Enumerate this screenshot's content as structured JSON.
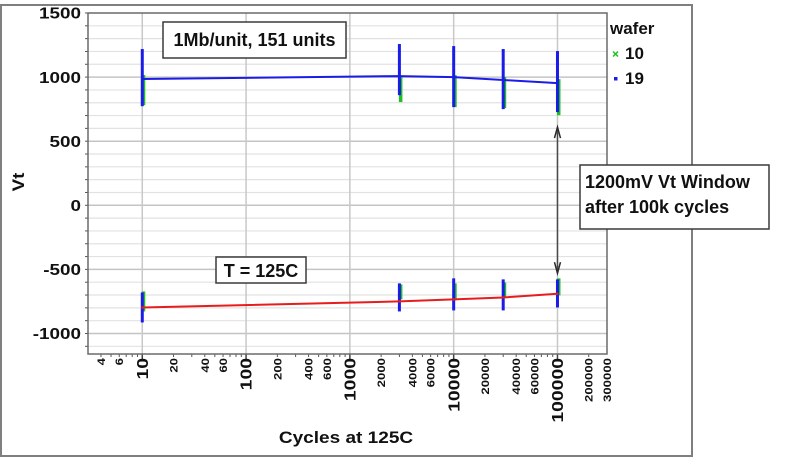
{
  "chart_data": {
    "type": "line",
    "title": "",
    "xlabel": "Cycles at 125C",
    "ylabel": "Vt",
    "xscale": "log",
    "xlim": [
      3,
      300000
    ],
    "ylim": [
      -1160,
      1500
    ],
    "grid": true,
    "y_grid_step": 100,
    "y_ticks": [
      -1000,
      -500,
      0,
      500,
      1000,
      1500
    ],
    "y_tick_labels": [
      "-1000",
      "-500",
      "0",
      "500",
      "1000",
      "1500"
    ],
    "x_major_ticks": [
      10,
      100,
      1000,
      10000,
      100000
    ],
    "x_major_tick_labels": [
      "10",
      "100",
      "1000",
      "10000",
      "100000"
    ],
    "x_minor_label_ticks": [
      4,
      6,
      20,
      40,
      60,
      200,
      400,
      600,
      2000,
      4000,
      6000,
      20000,
      40000,
      60000,
      200000,
      300000
    ],
    "x_minor_tick_labels": [
      "4",
      "6",
      "20",
      "40",
      "60",
      "200",
      "400",
      "600",
      "2000",
      "4000",
      "6000",
      "20000",
      "40000",
      "60000",
      "200000",
      "300000"
    ],
    "x": [
      10,
      3000,
      10000,
      30000,
      100000
    ],
    "mean_lines": {
      "upper": {
        "color": "#1c1ce8",
        "values": [
          985,
          1008,
          1000,
          977,
          953
        ]
      },
      "lower": {
        "color": "#e81c1c",
        "values": [
          -797,
          -750,
          -734,
          -719,
          -690
        ]
      }
    },
    "series": [
      {
        "wafer": "10",
        "color": "#1fbf1f",
        "upper_range": [
          [
            781,
            1016
          ],
          [
            805,
            1000
          ],
          [
            766,
            1016
          ],
          [
            758,
            1000
          ],
          [
            703,
            984
          ]
        ],
        "lower_range": [
          [
            -828,
            -672
          ],
          [
            -734,
            -617
          ],
          [
            -742,
            -609
          ],
          [
            -719,
            -602
          ],
          [
            -703,
            -570
          ]
        ]
      },
      {
        "wafer": "19",
        "color": "#1c1ce8",
        "upper_range": [
          [
            773,
            1219
          ],
          [
            859,
            1258
          ],
          [
            766,
            1242
          ],
          [
            750,
            1219
          ],
          [
            727,
            1203
          ]
        ],
        "lower_range": [
          [
            -914,
            -680
          ],
          [
            -828,
            -609
          ],
          [
            -820,
            -570
          ],
          [
            -820,
            -578
          ],
          [
            -797,
            -578
          ]
        ]
      }
    ],
    "legend": {
      "title": "wafer",
      "position": "right",
      "entries": [
        {
          "label": "10",
          "color": "#1fbf1f",
          "icon": "x-marker-icon"
        },
        {
          "label": "19",
          "color": "#1c1ce8",
          "icon": "square-marker-icon"
        }
      ]
    },
    "annotations": {
      "units_note": "1Mb/unit, 151 units",
      "temperature_note": "T = 125C",
      "window_note": [
        "1200mV Vt Window",
        "after 100k cycles"
      ],
      "window_arrow": {
        "x": 100000,
        "y_from": -530,
        "y_to": 610
      }
    }
  }
}
